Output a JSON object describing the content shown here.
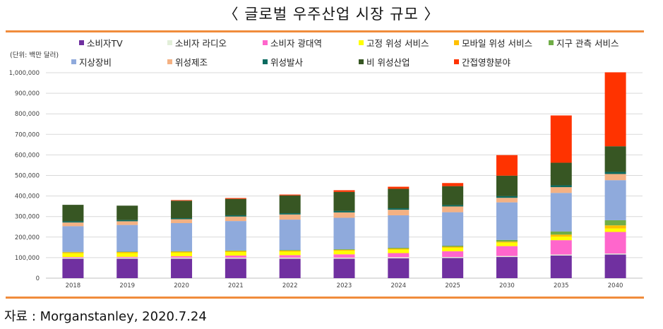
{
  "title": "〈 글로벌 우주산업 시장 규모 〉",
  "unit_label": "(단위: 백만 달러)",
  "source": "자료 : Morganstanley, 2020.7.24",
  "chart_data": {
    "type": "bar",
    "stacked": true,
    "categories": [
      "2018",
      "2019",
      "2020",
      "2021",
      "2022",
      "2023",
      "2024",
      "2025",
      "2030",
      "2035",
      "2040"
    ],
    "y_ticks": [
      "0",
      "100,000",
      "200,000",
      "300,000",
      "400,000",
      "500,000",
      "600,000",
      "700,000",
      "800,000",
      "900,000",
      "1,000,000"
    ],
    "ylim": [
      0,
      1000000
    ],
    "grid": true,
    "legend_position": "top",
    "series": [
      {
        "name": "소비자TV",
        "color": "#7030a0",
        "values": [
          95000,
          95000,
          95000,
          95000,
          95000,
          95000,
          97000,
          98000,
          103000,
          110000,
          115000
        ]
      },
      {
        "name": "소비자 라디오",
        "color": "#e2efd9",
        "values": [
          5000,
          5000,
          5000,
          5000,
          5000,
          5000,
          5000,
          5000,
          5000,
          5000,
          5000
        ]
      },
      {
        "name": "소비자 광대역",
        "color": "#ff66cc",
        "values": [
          3000,
          4000,
          7000,
          10000,
          12000,
          16000,
          20000,
          28000,
          48000,
          70000,
          105000
        ]
      },
      {
        "name": "고정 위성 서비스",
        "color": "#ffff00",
        "values": [
          18000,
          18000,
          17000,
          17000,
          17000,
          17000,
          17000,
          17000,
          17000,
          17000,
          17000
        ]
      },
      {
        "name": "모바일 위성 서비스",
        "color": "#ffc000",
        "values": [
          5000,
          5000,
          5000,
          5000,
          5000,
          5000,
          5000,
          5000,
          5000,
          10000,
          15000
        ]
      },
      {
        "name": "지구 관측 서비스",
        "color": "#70ad47",
        "values": [
          2000,
          2000,
          2000,
          3000,
          3000,
          3000,
          4000,
          5000,
          8000,
          15000,
          25000
        ]
      },
      {
        "name": "지상장비",
        "color": "#8faadc",
        "values": [
          125000,
          130000,
          137000,
          143000,
          148000,
          153000,
          158000,
          163000,
          183000,
          188000,
          195000
        ]
      },
      {
        "name": "위성제조",
        "color": "#f4b183",
        "values": [
          18000,
          18000,
          19000,
          22000,
          25000,
          26000,
          27000,
          28000,
          22000,
          28000,
          30000
        ]
      },
      {
        "name": "위성발사",
        "color": "#0b6b60",
        "values": [
          6000,
          6000,
          5000,
          6000,
          6000,
          7000,
          7000,
          7000,
          8000,
          9000,
          10000
        ]
      },
      {
        "name": "비 위성산업",
        "color": "#375623",
        "values": [
          80000,
          70000,
          85000,
          80000,
          87000,
          93000,
          95000,
          92000,
          100000,
          110000,
          125000
        ]
      },
      {
        "name": "간접영향분야",
        "color": "#ff3300",
        "values": [
          0,
          0,
          3000,
          4000,
          4000,
          8000,
          10000,
          15000,
          100000,
          230000,
          360000
        ]
      }
    ]
  }
}
